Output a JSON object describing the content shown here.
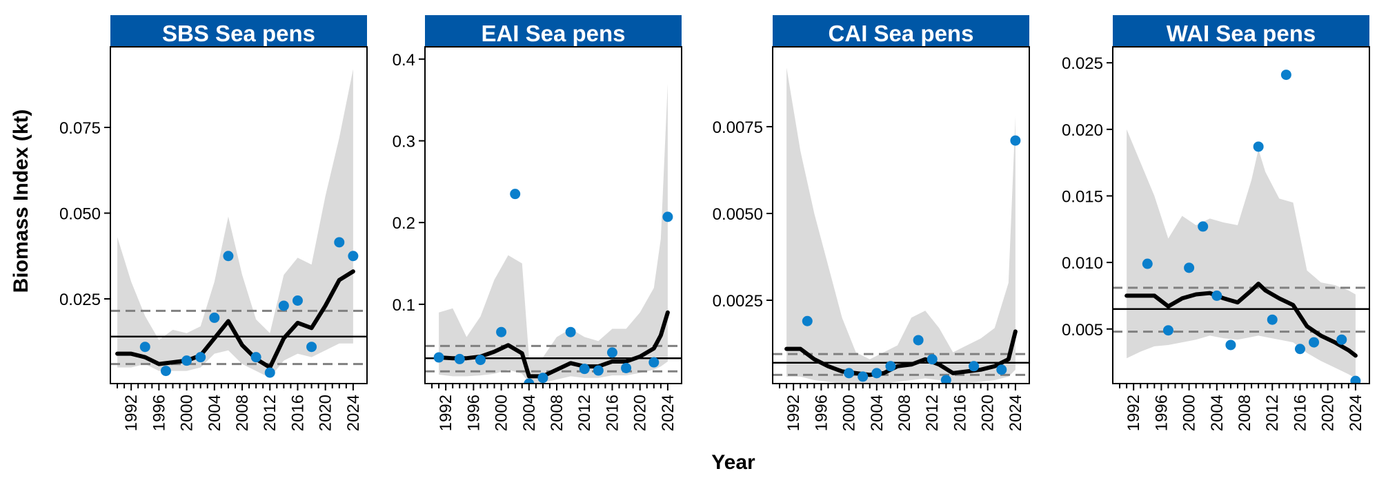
{
  "figure": {
    "ylabel": "Biomass Index (kt)",
    "xlabel": "Year"
  },
  "style": {
    "strip_color": "#0057A6",
    "point_color": "#0A7FCC",
    "band_color": "#DADADA",
    "line_color": "#000000",
    "dash_color": "#808080"
  },
  "chart_data": [
    {
      "type": "line",
      "title": "SBS Sea pens",
      "xlim": [
        1989,
        2026
      ],
      "ylim": [
        0.0003,
        0.0985
      ],
      "xticks": [
        "1992",
        "1996",
        "2000",
        "2004",
        "2008",
        "2012",
        "2016",
        "2020",
        "2024"
      ],
      "yticks": [
        "0.025",
        "0.050",
        "0.075"
      ],
      "ytick_values": [
        0.025,
        0.05,
        0.075
      ],
      "mean": 0.014,
      "mean_ci": [
        0.006,
        0.0215
      ],
      "points": {
        "x": [
          1994,
          1997,
          2000,
          2002,
          2004,
          2006,
          2010,
          2012,
          2014,
          2016,
          2018,
          2022,
          2024
        ],
        "y": [
          0.011,
          0.004,
          0.007,
          0.008,
          0.0195,
          0.0375,
          0.008,
          0.0035,
          0.023,
          0.0245,
          0.011,
          0.0415,
          0.0375
        ]
      },
      "trend": {
        "x": [
          1990,
          1992,
          1994,
          1996,
          1998,
          2000,
          2002,
          2004,
          2006,
          2008,
          2010,
          2012,
          2014,
          2016,
          2018,
          2020,
          2022,
          2024
        ],
        "y": [
          0.009,
          0.009,
          0.008,
          0.006,
          0.0065,
          0.007,
          0.0085,
          0.0135,
          0.0185,
          0.0115,
          0.0075,
          0.005,
          0.0135,
          0.018,
          0.0165,
          0.023,
          0.0305,
          0.033
        ]
      },
      "band": {
        "x": [
          1990,
          1992,
          1994,
          1996,
          1998,
          2000,
          2002,
          2004,
          2006,
          2008,
          2010,
          2012,
          2014,
          2016,
          2018,
          2020,
          2022,
          2024
        ],
        "lower": [
          0.005,
          0.005,
          0.006,
          0.004,
          0.004,
          0.004,
          0.005,
          0.009,
          0.01,
          0.006,
          0.004,
          0.002,
          0.007,
          0.009,
          0.008,
          0.01,
          0.012,
          0.012
        ],
        "upper": [
          0.043,
          0.03,
          0.02,
          0.013,
          0.016,
          0.015,
          0.017,
          0.03,
          0.049,
          0.032,
          0.019,
          0.015,
          0.032,
          0.037,
          0.035,
          0.055,
          0.072,
          0.092
        ]
      }
    },
    {
      "type": "line",
      "title": "EAI Sea pens",
      "xlim": [
        1989,
        2026
      ],
      "ylim": [
        0.003,
        0.415
      ],
      "xticks": [
        "1992",
        "1996",
        "2000",
        "2004",
        "2008",
        "2012",
        "2016",
        "2020",
        "2024"
      ],
      "yticks": [
        "0.1",
        "0.2",
        "0.3",
        "0.4"
      ],
      "ytick_values": [
        0.1,
        0.2,
        0.3,
        0.4
      ],
      "mean": 0.034,
      "mean_ci": [
        0.018,
        0.049
      ],
      "points": {
        "x": [
          1991,
          1994,
          1997,
          2000,
          2002,
          2004,
          2006,
          2010,
          2012,
          2014,
          2016,
          2018,
          2022,
          2024
        ],
        "y": [
          0.035,
          0.033,
          0.032,
          0.066,
          0.235,
          0.003,
          0.01,
          0.066,
          0.021,
          0.019,
          0.041,
          0.022,
          0.029,
          0.207
        ]
      },
      "trend": {
        "x": [
          1991,
          1993,
          1995,
          1997,
          1999,
          2001,
          2003,
          2004,
          2006,
          2008,
          2010,
          2012,
          2014,
          2016,
          2018,
          2020,
          2022,
          2023,
          2024
        ],
        "y": [
          0.035,
          0.034,
          0.034,
          0.036,
          0.042,
          0.05,
          0.04,
          0.012,
          0.012,
          0.02,
          0.028,
          0.024,
          0.024,
          0.03,
          0.03,
          0.036,
          0.046,
          0.062,
          0.09
        ]
      },
      "band": {
        "x": [
          1991,
          1993,
          1995,
          1997,
          1999,
          2001,
          2003,
          2004,
          2006,
          2008,
          2010,
          2012,
          2014,
          2016,
          2018,
          2020,
          2022,
          2023,
          2024
        ],
        "lower": [
          0.014,
          0.012,
          0.012,
          0.013,
          0.015,
          0.02,
          0.015,
          0.004,
          0.004,
          0.008,
          0.012,
          0.01,
          0.01,
          0.013,
          0.013,
          0.016,
          0.02,
          0.024,
          0.03
        ],
        "upper": [
          0.09,
          0.095,
          0.06,
          0.085,
          0.13,
          0.16,
          0.15,
          0.035,
          0.035,
          0.06,
          0.07,
          0.06,
          0.055,
          0.07,
          0.07,
          0.09,
          0.12,
          0.18,
          0.37
        ]
      }
    },
    {
      "type": "line",
      "title": "CAI Sea pens",
      "xlim": [
        1989,
        2026
      ],
      "ylim": [
        0.0001,
        0.0098
      ],
      "xticks": [
        "1992",
        "1996",
        "2000",
        "2004",
        "2008",
        "2012",
        "2016",
        "2020",
        "2024"
      ],
      "yticks": [
        "0.0025",
        "0.0050",
        "0.0075"
      ],
      "ytick_values": [
        0.0025,
        0.005,
        0.0075
      ],
      "mean": 0.0007,
      "mean_ci": [
        0.00035,
        0.00095
      ],
      "points": {
        "x": [
          1994,
          2000,
          2002,
          2004,
          2006,
          2010,
          2012,
          2014,
          2018,
          2022,
          2024
        ],
        "y": [
          0.0019,
          0.0004,
          0.0003,
          0.0004,
          0.0006,
          0.00135,
          0.0008,
          0.0002,
          0.0006,
          0.0005,
          0.0071
        ]
      },
      "trend": {
        "x": [
          1991,
          1993,
          1995,
          1997,
          1999,
          2001,
          2003,
          2005,
          2007,
          2009,
          2011,
          2013,
          2015,
          2017,
          2019,
          2021,
          2023,
          2024
        ],
        "y": [
          0.0011,
          0.0011,
          0.0008,
          0.0006,
          0.00045,
          0.0004,
          0.00035,
          0.0004,
          0.0006,
          0.00065,
          0.0008,
          0.00065,
          0.0004,
          0.00045,
          0.0005,
          0.0006,
          0.0008,
          0.0016
        ]
      },
      "band": {
        "x": [
          1991,
          1993,
          1995,
          1997,
          1999,
          2001,
          2003,
          2005,
          2007,
          2009,
          2011,
          2013,
          2015,
          2017,
          2019,
          2021,
          2023,
          2024
        ],
        "lower": [
          0.0003,
          0.0003,
          0.0002,
          0.00015,
          0.0001,
          0.0001,
          0.0001,
          0.0001,
          0.00015,
          0.0002,
          0.00025,
          0.0002,
          0.00012,
          0.00012,
          0.00015,
          0.0002,
          0.0003,
          0.0005
        ],
        "upper": [
          0.0092,
          0.0068,
          0.005,
          0.0035,
          0.002,
          0.001,
          0.0008,
          0.001,
          0.0012,
          0.002,
          0.0022,
          0.0017,
          0.001,
          0.0012,
          0.0014,
          0.0017,
          0.003,
          0.0078
        ]
      }
    },
    {
      "type": "line",
      "title": "WAI Sea pens",
      "xlim": [
        1989,
        2026
      ],
      "ylim": [
        0.0009,
        0.0262
      ],
      "xticks": [
        "1992",
        "1996",
        "2000",
        "2004",
        "2008",
        "2012",
        "2016",
        "2020",
        "2024"
      ],
      "yticks": [
        "0.005",
        "0.010",
        "0.015",
        "0.020",
        "0.025"
      ],
      "ytick_values": [
        0.005,
        0.01,
        0.015,
        0.02,
        0.025
      ],
      "mean": 0.0065,
      "mean_ci": [
        0.0048,
        0.0081
      ],
      "points": {
        "x": [
          1994,
          1997,
          2000,
          2002,
          2004,
          2006,
          2010,
          2012,
          2014,
          2016,
          2018,
          2022,
          2024
        ],
        "y": [
          0.0099,
          0.0049,
          0.0096,
          0.0127,
          0.0075,
          0.0038,
          0.0187,
          0.0057,
          0.0241,
          0.0035,
          0.004,
          0.0042,
          0.0011
        ]
      },
      "trend": {
        "x": [
          1991,
          1993,
          1995,
          1997,
          1999,
          2001,
          2003,
          2005,
          2007,
          2009,
          2010,
          2011,
          2013,
          2015,
          2017,
          2019,
          2021,
          2023,
          2024
        ],
        "y": [
          0.0075,
          0.0075,
          0.0075,
          0.0067,
          0.0073,
          0.0076,
          0.0077,
          0.0073,
          0.007,
          0.0079,
          0.0084,
          0.0079,
          0.0073,
          0.0068,
          0.0052,
          0.0045,
          0.004,
          0.0034,
          0.003
        ]
      },
      "band": {
        "x": [
          1991,
          1993,
          1995,
          1997,
          1999,
          2001,
          2003,
          2005,
          2007,
          2009,
          2010,
          2011,
          2013,
          2015,
          2017,
          2019,
          2021,
          2023,
          2024
        ],
        "lower": [
          0.0028,
          0.0033,
          0.0037,
          0.0038,
          0.004,
          0.0042,
          0.0045,
          0.0043,
          0.0042,
          0.0044,
          0.0045,
          0.0044,
          0.0042,
          0.004,
          0.0032,
          0.0026,
          0.0021,
          0.0016,
          0.0013
        ],
        "upper": [
          0.02,
          0.0175,
          0.015,
          0.0118,
          0.0135,
          0.0128,
          0.0133,
          0.013,
          0.0128,
          0.0162,
          0.0185,
          0.0168,
          0.0148,
          0.0145,
          0.0094,
          0.0085,
          0.0083,
          0.0079,
          0.0076
        ]
      }
    }
  ]
}
